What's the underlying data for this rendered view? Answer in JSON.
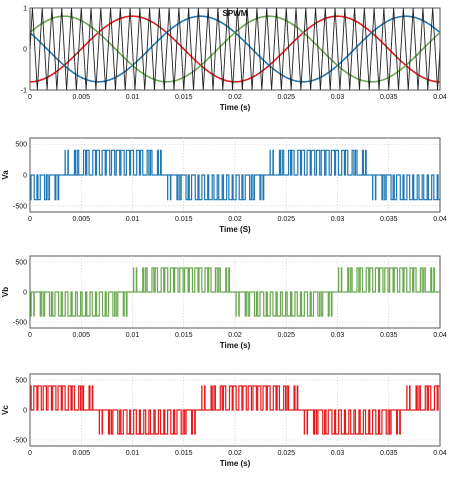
{
  "chart_data": [
    {
      "type": "line",
      "title": "SPWM",
      "xlabel": "Time (s)",
      "ylabel": "",
      "xlim": [
        0,
        0.04
      ],
      "ylim": [
        -1,
        1
      ],
      "x_ticks": [
        "0",
        "0.005",
        "0.01",
        "0.015",
        "0.02",
        "0.025",
        "0.03",
        "0.035",
        "0.04"
      ],
      "y_ticks": [
        "-1",
        "0",
        "1"
      ],
      "grid": true,
      "series": [
        {
          "kind": "sine",
          "amplitude": 0.8,
          "frequency_hz": 50,
          "phase_deg": -90,
          "color": "#e41a1c"
        },
        {
          "kind": "sine",
          "amplitude": 0.8,
          "frequency_hz": 50,
          "phase_deg": 150,
          "color": "#1f77b4"
        },
        {
          "kind": "sine",
          "amplitude": 0.8,
          "frequency_hz": 50,
          "phase_deg": 30,
          "color": "#6aa84f"
        },
        {
          "kind": "triangle_carrier",
          "amplitude": 1,
          "frequency_hz": 1050,
          "color": "#222222"
        }
      ]
    },
    {
      "type": "line",
      "title": "",
      "xlabel": "Time (S)",
      "ylabel": "Va",
      "xlim": [
        0,
        0.04
      ],
      "ylim": [
        -600,
        600
      ],
      "x_ticks": [
        "0",
        "0.005",
        "0.01",
        "0.015",
        "0.02",
        "0.025",
        "0.03",
        "0.035",
        "0.04"
      ],
      "y_ticks": [
        "500",
        "0",
        "-500"
      ],
      "grid": true,
      "series": [
        {
          "kind": "spwm_line_voltage",
          "reference": "a-b",
          "amplitude_v": 400,
          "color": "#1f77b4"
        }
      ]
    },
    {
      "type": "line",
      "title": "",
      "xlabel": "Time (s)",
      "ylabel": "Vb",
      "xlim": [
        0,
        0.04
      ],
      "ylim": [
        -600,
        600
      ],
      "x_ticks": [
        "0",
        "0.005",
        "0.01",
        "0.015",
        "0.02",
        "0.025",
        "0.03",
        "0.035",
        "0.04"
      ],
      "y_ticks": [
        "500",
        "0",
        "-500"
      ],
      "grid": true,
      "series": [
        {
          "kind": "spwm_line_voltage",
          "reference": "b-c",
          "amplitude_v": 400,
          "color": "#6aa84f"
        }
      ]
    },
    {
      "type": "line",
      "title": "",
      "xlabel": "Time (s)",
      "ylabel": "Vc",
      "xlim": [
        0,
        0.04
      ],
      "ylim": [
        -600,
        600
      ],
      "x_ticks": [
        "0",
        "0.005",
        "0.01",
        "0.015",
        "0.02",
        "0.025",
        "0.03",
        "0.035",
        "0.04"
      ],
      "y_ticks": [
        "500",
        "0",
        "-500"
      ],
      "grid": true,
      "series": [
        {
          "kind": "spwm_line_voltage",
          "reference": "c-a",
          "amplitude_v": 400,
          "color": "#e41a1c"
        }
      ]
    }
  ]
}
